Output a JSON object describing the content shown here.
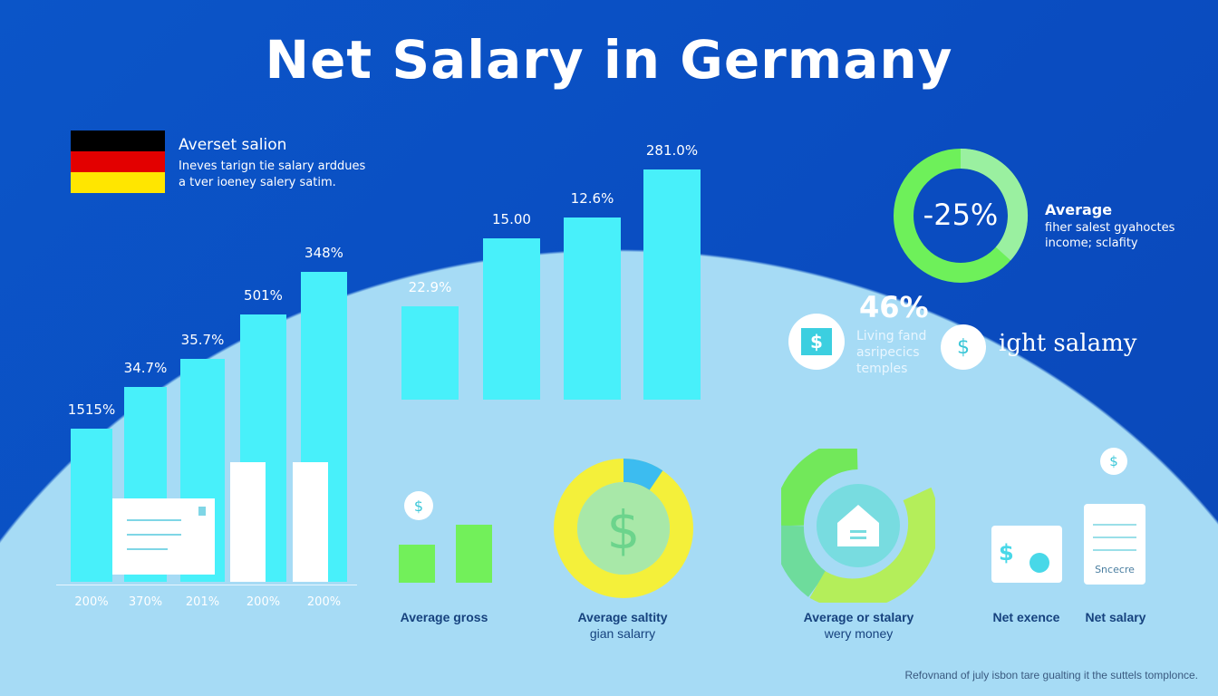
{
  "title": "Net Salary in Germany",
  "intro": {
    "heading": "Averset salion",
    "text_line1": "Ineves tarign tie salary arddues",
    "text_line2": "a tver ioeney salery satim."
  },
  "donut_top": {
    "value": "-25%",
    "heading": "Average",
    "line1": "fiher salest gyahoctes",
    "line2": "income; sclafity",
    "colors": [
      "#6ef05a",
      "#9af0a0"
    ]
  },
  "stat": {
    "value": "46%",
    "line1": "Living fand",
    "line2": "asripecics",
    "line3": "temples",
    "side_text": "ight salamy"
  },
  "captions": {
    "gross": "Average gross",
    "saltity_1": "Average saltity",
    "saltity_2": "gian salarry",
    "stalary_1": "Average or stalary",
    "stalary_2": "wery money",
    "net_exence": "Net exence",
    "net_salary": "Net salary",
    "doc_label": "Sncecre"
  },
  "footer": "Refovnand of july isbon tare gualting it the suttels tomplonce.",
  "colors": {
    "background": "#0b55c8",
    "arc": "#a6dbf5",
    "bar": "#48f0fa",
    "green": "#72f05a",
    "yellow": "#f4f03a"
  },
  "chart_data": [
    {
      "type": "bar",
      "categories": [
        "200%",
        "370%",
        "201%",
        "200%",
        "200%"
      ],
      "data_labels": [
        "1515%",
        "34.7%",
        "35.7%",
        "501%",
        "348%"
      ],
      "title": "",
      "xlabel": "",
      "ylabel": ""
    },
    {
      "type": "bar",
      "categories": [],
      "data_labels": [
        "22.9%",
        "15.00",
        "12.6%",
        "281.0%"
      ],
      "title": "",
      "xlabel": "",
      "ylabel": ""
    }
  ]
}
